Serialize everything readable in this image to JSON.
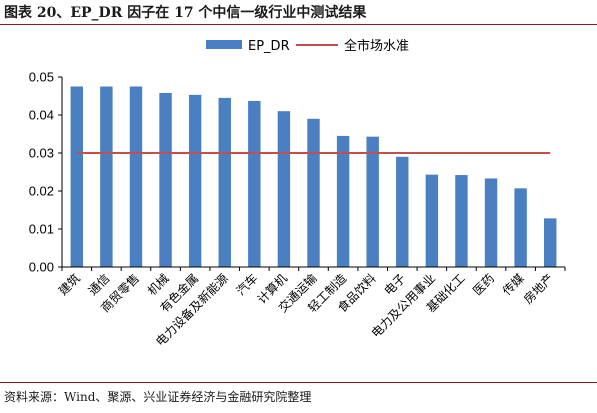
{
  "title": "图表 20、EP_DR 因子在 17 个中信一级行业中测试结果",
  "source": "资料来源：Wind、聚源、兴业证券经济与金融研究院整理",
  "colors": {
    "bar": "#4a7fc1",
    "line": "#c0504d",
    "axis": "#000000"
  },
  "chart_data": {
    "type": "bar",
    "categories": [
      "建筑",
      "通信",
      "商贸零售",
      "机械",
      "有色金属",
      "电力设备及新能源",
      "汽车",
      "计算机",
      "交通运输",
      "轻工制造",
      "食品饮料",
      "电子",
      "电力及公用事业",
      "基础化工",
      "医药",
      "传媒",
      "房地产"
    ],
    "series": [
      {
        "name": "EP_DR",
        "type": "bar",
        "values": [
          0.0475,
          0.0475,
          0.0475,
          0.0458,
          0.0453,
          0.0445,
          0.0437,
          0.041,
          0.039,
          0.0345,
          0.0343,
          0.029,
          0.0243,
          0.0242,
          0.0233,
          0.0207,
          0.0128
        ]
      },
      {
        "name": "全市场水准",
        "type": "line",
        "values": [
          0.03,
          0.03,
          0.03,
          0.03,
          0.03,
          0.03,
          0.03,
          0.03,
          0.03,
          0.03,
          0.03,
          0.03,
          0.03,
          0.03,
          0.03,
          0.03,
          0.03
        ]
      }
    ],
    "yticks": [
      "0.00",
      "0.01",
      "0.02",
      "0.03",
      "0.04",
      "0.05"
    ],
    "ylim": [
      0,
      0.05
    ],
    "grid": false,
    "legend": "top"
  }
}
